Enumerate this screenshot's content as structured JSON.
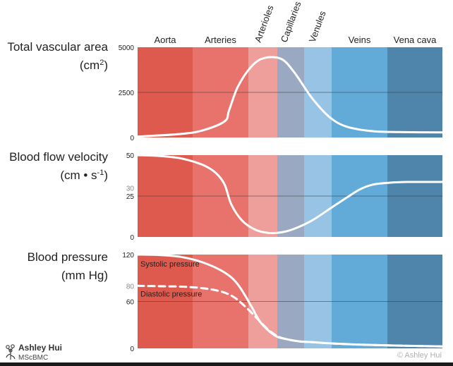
{
  "vessels": [
    {
      "id": "aorta",
      "label": "Aorta",
      "color": "#DE5A4E",
      "rotated": false
    },
    {
      "id": "arteries",
      "label": "Arteries",
      "color": "#E8736D",
      "rotated": false
    },
    {
      "id": "arterioles",
      "label": "Arterioles",
      "color": "#EE9F9B",
      "rotated": true
    },
    {
      "id": "capillaries",
      "label": "Capillaries",
      "color": "#9AA8C1",
      "rotated": true
    },
    {
      "id": "venules",
      "label": "Venules",
      "color": "#97C3E4",
      "rotated": true
    },
    {
      "id": "veins",
      "label": "Veins",
      "color": "#62AAD8",
      "rotated": false
    },
    {
      "id": "vena_cava",
      "label": "Vena cava",
      "color": "#4F85AA",
      "rotated": false
    }
  ],
  "panels": [
    {
      "id": "area",
      "title": "Total vascular area",
      "unit_main": "(cm",
      "unit_sup": "2",
      "unit_tail": ")",
      "ticks": [
        {
          "value": 5000,
          "label": "5000"
        },
        {
          "value": 2500,
          "label": "2500"
        },
        {
          "value": 0,
          "label": "0"
        }
      ],
      "ref_lines": [
        2500
      ],
      "ylim": [
        0,
        5000
      ]
    },
    {
      "id": "velocity",
      "title": "Blood flow velocity",
      "unit_main": "(cm • s",
      "unit_sup": "-1",
      "unit_tail": ")",
      "ticks": [
        {
          "value": 50,
          "label": "50"
        },
        {
          "value": 30,
          "label": "30",
          "muted": true
        },
        {
          "value": 25,
          "label": "25"
        },
        {
          "value": 0,
          "label": "0"
        }
      ],
      "ref_lines": [
        25
      ],
      "ylim": [
        0,
        50
      ]
    },
    {
      "id": "pressure",
      "title": "Blood pressure",
      "unit_main": "(mm Hg)",
      "unit_sup": "",
      "unit_tail": "",
      "ticks": [
        {
          "value": 120,
          "label": "120"
        },
        {
          "value": 80,
          "label": "80",
          "muted": true
        },
        {
          "value": 60,
          "label": "60"
        },
        {
          "value": 0,
          "label": "0"
        }
      ],
      "ref_lines": [
        60
      ],
      "ylim": [
        0,
        120
      ],
      "curve_labels": [
        {
          "text": "Systolic pressure",
          "series": "systolic"
        },
        {
          "text": "Diastolic pressure",
          "series": "diastolic"
        }
      ]
    }
  ],
  "chart_data": {
    "type": "line",
    "x_domain": [
      0,
      7
    ],
    "series": [
      {
        "panel": "area",
        "x": [
          0,
          1,
          1.5,
          2,
          2.1,
          2.3,
          2.6,
          2.9,
          3.3,
          3.6,
          4.0,
          4.4,
          4.8,
          5.4,
          6.0,
          7.0
        ],
        "y": [
          50,
          200,
          400,
          900,
          1500,
          2800,
          3900,
          4400,
          4350,
          3600,
          2200,
          1150,
          600,
          350,
          300,
          280
        ]
      },
      {
        "panel": "velocity",
        "x": [
          0,
          0.5,
          1,
          1.5,
          1.8,
          2.0,
          2.15,
          2.4,
          2.7,
          3.0,
          3.3,
          3.6,
          4.0,
          4.4,
          4.8,
          5.1,
          5.4,
          5.8,
          6.2,
          7.0
        ],
        "y": [
          50,
          49.5,
          48,
          44,
          39,
          32,
          20,
          10,
          4.5,
          2.5,
          2.8,
          5,
          10,
          17,
          24,
          29,
          32,
          33.2,
          33.6,
          33.6
        ]
      },
      {
        "panel": "pressure",
        "series": "systolic",
        "x": [
          0,
          0.5,
          1,
          1.5,
          2.0,
          2.3,
          2.6,
          2.8,
          3.0,
          3.2,
          3.4,
          3.7,
          4.0,
          4.4,
          5,
          6,
          7.0
        ],
        "y": [
          120,
          119.5,
          117,
          110,
          97,
          82,
          55,
          35,
          23,
          15,
          12,
          9,
          8,
          6.5,
          5,
          3.5,
          2.5
        ]
      },
      {
        "panel": "pressure",
        "series": "diastolic",
        "x": [
          0,
          0.5,
          1,
          1.5,
          1.9,
          2.2,
          2.5,
          2.8,
          3.0,
          3.2,
          3.4,
          3.7,
          4.0,
          4.4,
          5,
          6,
          7.0
        ],
        "y": [
          80,
          79.5,
          79,
          77,
          73,
          66,
          52,
          35,
          24,
          16,
          12,
          9,
          8,
          6.5,
          5,
          3.5,
          2.5
        ]
      }
    ]
  },
  "footer": {
    "author_name": "Ashley Hui",
    "author_cred": "MScBMC",
    "copyright": "© Ashley Hui"
  }
}
